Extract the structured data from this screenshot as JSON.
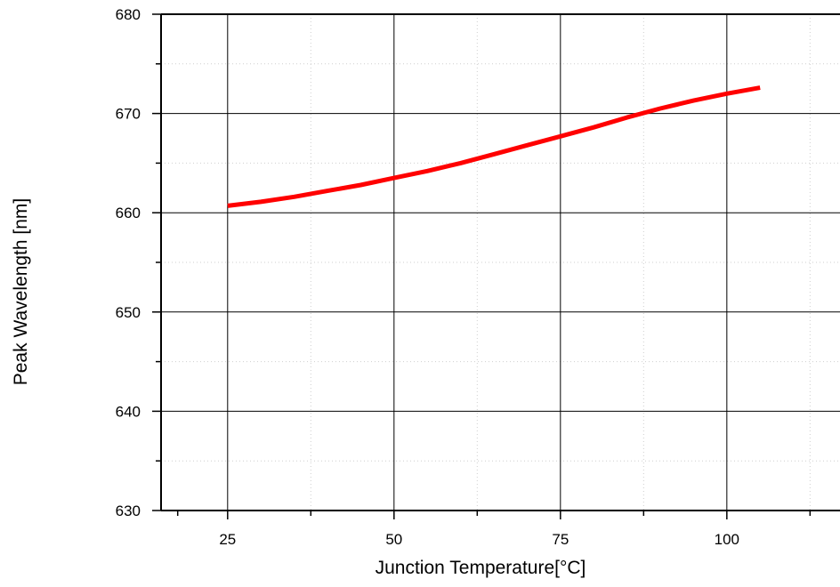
{
  "chart_data": {
    "type": "line",
    "title": "",
    "xlabel": "Junction Temperature[°C]",
    "ylabel": "Peak Wavelength [nm]",
    "xlim": [
      15,
      117
    ],
    "ylim": [
      630,
      680
    ],
    "x_ticks": [
      25,
      50,
      75,
      100
    ],
    "y_ticks": [
      630,
      640,
      650,
      660,
      670,
      680
    ],
    "x_tick_labels": [
      "25",
      "50",
      "75",
      "100"
    ],
    "y_tick_labels": [
      "630",
      "640",
      "650",
      "660",
      "670",
      "680"
    ],
    "grid": true,
    "legend": "none",
    "series": [
      {
        "color": "#ff0000",
        "x": [
          25,
          30,
          35,
          40,
          45,
          50,
          55,
          60,
          65,
          70,
          75,
          80,
          85,
          90,
          95,
          100,
          105
        ],
        "y": [
          660.7,
          661.1,
          661.6,
          662.2,
          662.8,
          663.5,
          664.2,
          665.0,
          665.9,
          666.8,
          667.7,
          668.6,
          669.6,
          670.5,
          671.3,
          672.0,
          672.6
        ]
      }
    ]
  }
}
